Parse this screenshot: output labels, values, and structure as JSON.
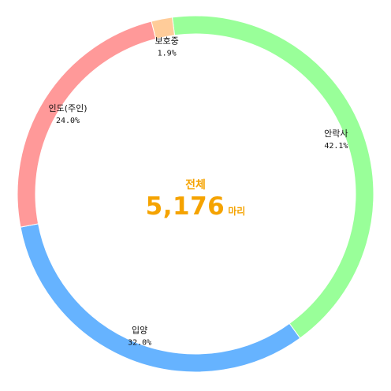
{
  "colors": {
    "center_text": "#f5a300",
    "label_text": "#111111"
  },
  "center": {
    "title": "전체",
    "value": "5,176",
    "unit": "마리"
  },
  "chart_data": {
    "type": "pie",
    "donut": true,
    "total": 5176,
    "start_angle_deg": -7.5,
    "direction": "clockwise",
    "slices": [
      {
        "name": "안락사",
        "percent_label": "42.1%",
        "value": 42.1,
        "color": "#99ff99"
      },
      {
        "name": "입양",
        "percent_label": "32.0%",
        "value": 32.0,
        "color": "#66b3ff"
      },
      {
        "name": "인도(주인)",
        "percent_label": "24.0%",
        "value": 24.0,
        "color": "#ff9999"
      },
      {
        "name": "보호중",
        "percent_label": "1.9%",
        "value": 1.9,
        "color": "#ffcc99"
      }
    ]
  }
}
